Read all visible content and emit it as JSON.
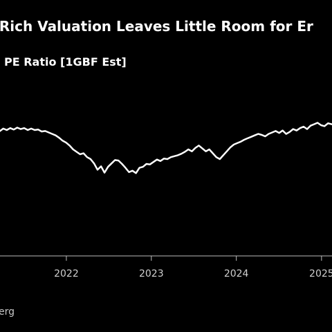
{
  "header": {
    "title": "s Rich Valuation Leaves Little Room for Er",
    "subtitle": " PE Ratio [1GBF Est]"
  },
  "footer": {
    "source": "erg"
  },
  "chart_data": {
    "type": "line",
    "title": "s Rich Valuation Leaves Little Room for Er",
    "subtitle": " PE Ratio [1GBF Est]",
    "x_tick_labels": [
      "2022",
      "2023",
      "2024",
      "2025"
    ],
    "xlim": [
      "2021-03-22",
      "2025-02-15"
    ],
    "ylim": [
      0,
      1
    ],
    "y_axis_labels_visible": false,
    "grid": false,
    "line_color": "#ffffff",
    "background": "#000000",
    "series": [
      {
        "x": [
          "2021-03-22",
          "2021-04-05",
          "2021-04-20",
          "2021-05-05",
          "2021-05-20",
          "2021-06-04",
          "2021-06-19",
          "2021-07-04",
          "2021-07-19",
          "2021-08-03",
          "2021-08-18",
          "2021-09-02",
          "2021-09-17",
          "2021-10-02",
          "2021-10-17",
          "2021-11-01",
          "2021-11-16",
          "2021-12-01",
          "2021-12-16",
          "2021-12-31",
          "2022-01-15",
          "2022-01-30",
          "2022-02-14",
          "2022-03-01",
          "2022-03-16",
          "2022-03-31",
          "2022-04-15",
          "2022-04-30",
          "2022-05-15",
          "2022-05-30",
          "2022-06-14",
          "2022-06-29",
          "2022-07-14",
          "2022-07-29",
          "2022-08-13",
          "2022-08-28",
          "2022-09-12",
          "2022-09-27",
          "2022-10-12",
          "2022-10-27",
          "2022-11-11",
          "2022-11-26",
          "2022-12-11",
          "2022-12-26",
          "2023-01-10",
          "2023-01-25",
          "2023-02-09",
          "2023-02-24",
          "2023-03-11",
          "2023-03-26",
          "2023-04-10",
          "2023-04-25",
          "2023-05-10",
          "2023-05-25",
          "2023-06-09",
          "2023-06-24",
          "2023-07-09",
          "2023-07-24",
          "2023-08-08",
          "2023-08-23",
          "2023-09-07",
          "2023-09-22",
          "2023-10-07",
          "2023-10-22",
          "2023-11-06",
          "2023-11-21",
          "2023-12-06",
          "2023-12-21",
          "2024-01-05",
          "2024-01-20",
          "2024-02-04",
          "2024-02-19",
          "2024-03-05",
          "2024-03-20",
          "2024-04-04",
          "2024-04-19",
          "2024-05-04",
          "2024-05-19",
          "2024-06-03",
          "2024-06-18",
          "2024-07-03",
          "2024-07-18",
          "2024-08-02",
          "2024-08-17",
          "2024-09-01",
          "2024-09-16",
          "2024-10-01",
          "2024-10-16",
          "2024-10-31",
          "2024-11-15",
          "2024-11-30",
          "2024-12-15",
          "2024-12-30",
          "2025-01-14",
          "2025-01-29",
          "2025-02-13"
        ],
        "values": [
          0.79,
          0.815,
          0.8,
          0.82,
          0.805,
          0.825,
          0.81,
          0.82,
          0.8,
          0.815,
          0.8,
          0.805,
          0.785,
          0.79,
          0.775,
          0.76,
          0.745,
          0.72,
          0.69,
          0.67,
          0.64,
          0.6,
          0.575,
          0.55,
          0.56,
          0.52,
          0.5,
          0.455,
          0.39,
          0.425,
          0.36,
          0.42,
          0.455,
          0.49,
          0.485,
          0.45,
          0.41,
          0.365,
          0.38,
          0.355,
          0.41,
          0.42,
          0.45,
          0.445,
          0.47,
          0.495,
          0.48,
          0.505,
          0.5,
          0.52,
          0.53,
          0.54,
          0.555,
          0.575,
          0.6,
          0.58,
          0.615,
          0.64,
          0.61,
          0.58,
          0.6,
          0.56,
          0.52,
          0.5,
          0.54,
          0.58,
          0.62,
          0.65,
          0.665,
          0.68,
          0.7,
          0.715,
          0.73,
          0.745,
          0.76,
          0.75,
          0.735,
          0.76,
          0.775,
          0.79,
          0.77,
          0.795,
          0.76,
          0.78,
          0.81,
          0.795,
          0.82,
          0.835,
          0.81,
          0.845,
          0.86,
          0.875,
          0.85,
          0.84,
          0.87,
          0.86
        ]
      }
    ]
  }
}
